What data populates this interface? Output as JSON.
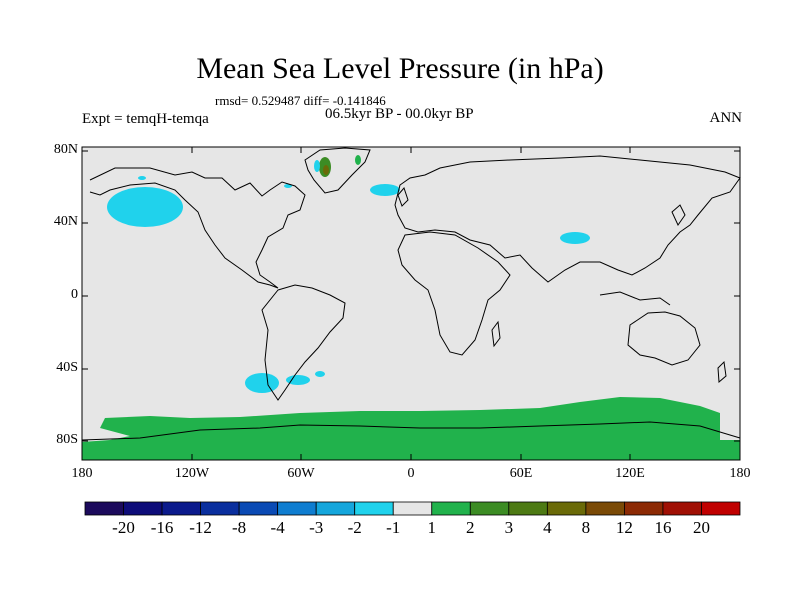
{
  "title": "Mean Sea Level Pressure (in hPa)",
  "stats": "rmsd= 0.529487 diff= -0.141846",
  "period": "06.5kyr BP - 00.0kyr BP",
  "experiment": "Expt = temqH-temqa",
  "season": "ANN",
  "axes": {
    "lat_labels": [
      "80N",
      "40N",
      "0",
      "40S",
      "80S"
    ],
    "lon_labels": [
      "180",
      "120W",
      "60W",
      "0",
      "60E",
      "120E",
      "180"
    ]
  },
  "colorbar": {
    "colors": [
      "#1c0a5c",
      "#0e0c79",
      "#0b1a8c",
      "#0a2f9e",
      "#0a4ab4",
      "#0f7dd0",
      "#15a6dc",
      "#20d2ec",
      "#e6e6e6",
      "#21b24c",
      "#3c8c24",
      "#4d7a14",
      "#6a6a08",
      "#7a4a06",
      "#8c2a04",
      "#a01004",
      "#c00000"
    ],
    "labels": [
      "-20",
      "-16",
      "-12",
      "-8",
      "-4",
      "-3",
      "-2",
      "-1",
      "1",
      "2",
      "3",
      "4",
      "8",
      "12",
      "16",
      "20"
    ]
  },
  "map_colors": {
    "background": "#e6e6e6",
    "positive_fill": "#21b24c",
    "negative_fill": "#20d2ec",
    "coast": "#000000"
  }
}
